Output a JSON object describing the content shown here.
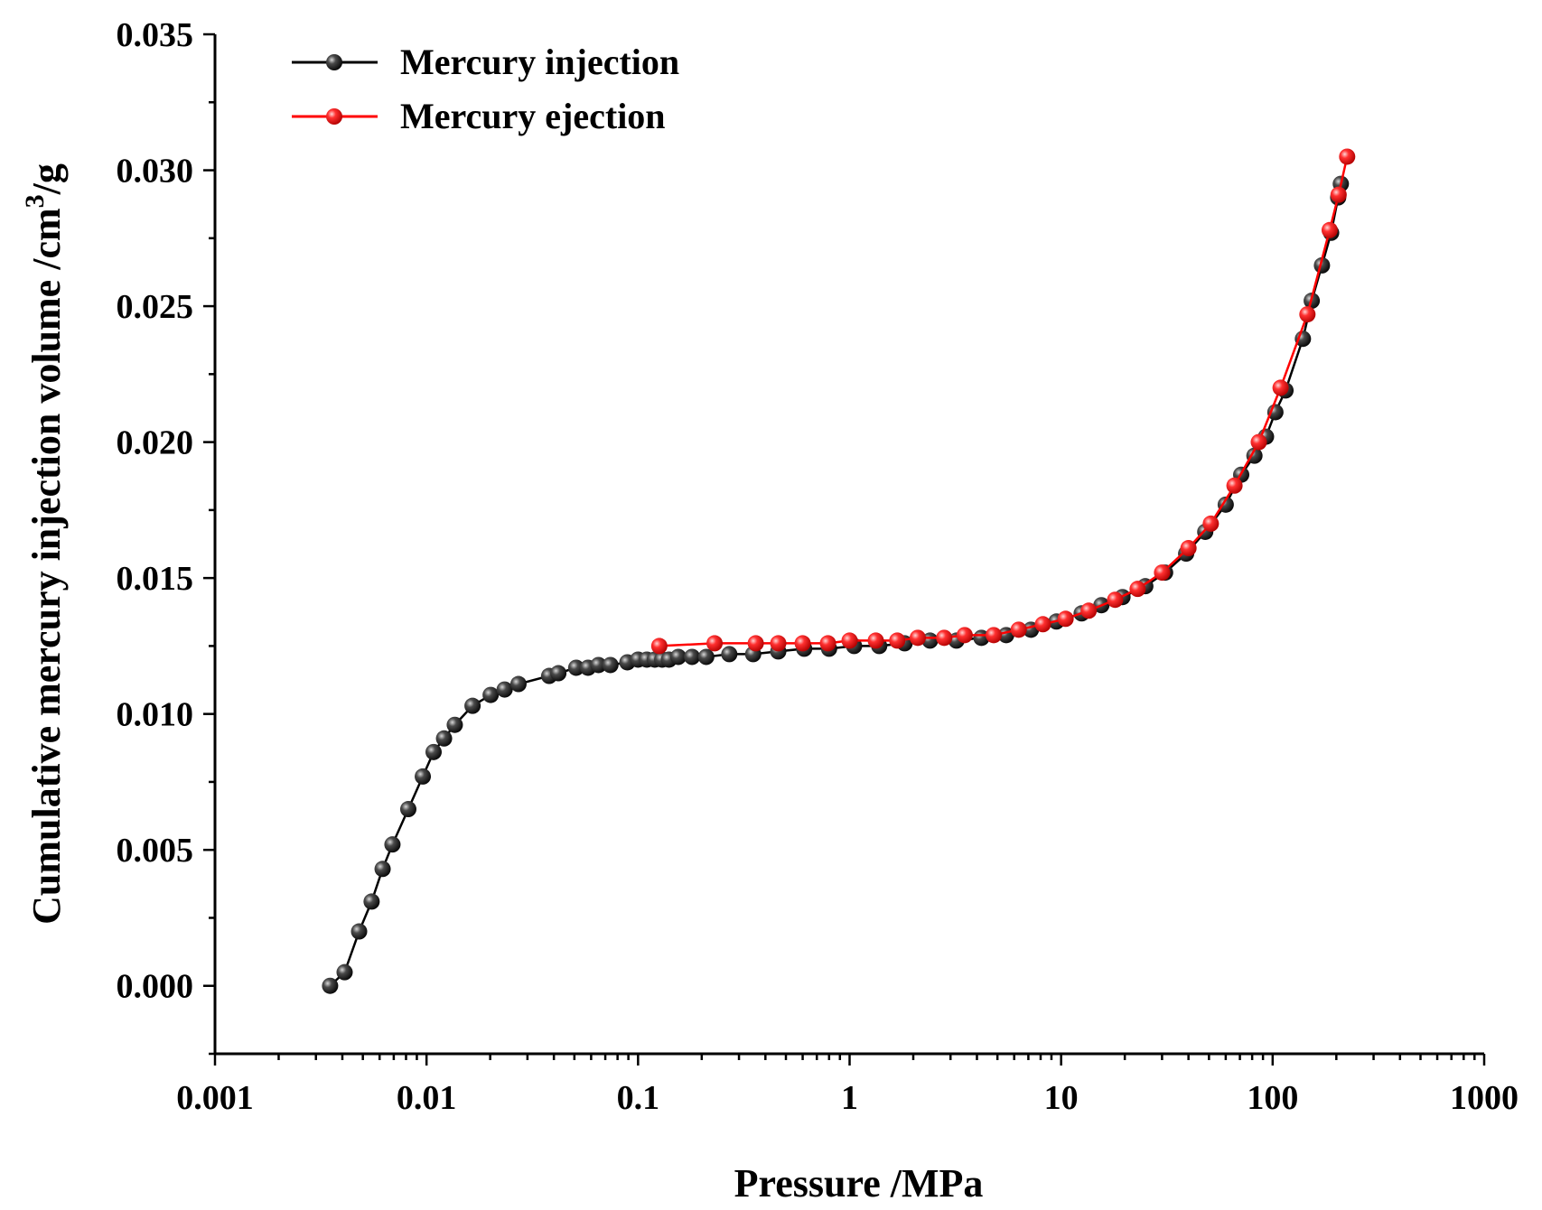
{
  "chart_data": {
    "type": "line",
    "title": "",
    "xlabel": "Pressure /MPa",
    "ylabel": "Cumulative mercury injection volume /cm",
    "ylabel_sup": "3",
    "ylabel_tail": "/g",
    "x_scale": "log",
    "xlim": [
      0.001,
      1000
    ],
    "ylim": [
      -0.0025,
      0.035
    ],
    "x_ticks": [
      0.001,
      0.01,
      0.1,
      1,
      10,
      100,
      1000
    ],
    "x_tick_labels": [
      "0.001",
      "0.01",
      "0.1",
      "1",
      "10",
      "100",
      "1000"
    ],
    "y_ticks": [
      0.0,
      0.005,
      0.01,
      0.015,
      0.02,
      0.025,
      0.03,
      0.035
    ],
    "y_tick_labels": [
      "0.000",
      "0.005",
      "0.010",
      "0.015",
      "0.020",
      "0.025",
      "0.030",
      "0.035"
    ],
    "grid": false,
    "legend": "top-left",
    "series": [
      {
        "name": "Mercury injection",
        "color": "#000000",
        "marker_color": "#1a1a1a",
        "points": [
          [
            0.0035,
            0.0
          ],
          [
            0.0041,
            0.0005
          ],
          [
            0.0048,
            0.002
          ],
          [
            0.0055,
            0.0031
          ],
          [
            0.0062,
            0.0043
          ],
          [
            0.0069,
            0.0052
          ],
          [
            0.0082,
            0.0065
          ],
          [
            0.0096,
            0.0077
          ],
          [
            0.0108,
            0.0086
          ],
          [
            0.0121,
            0.0091
          ],
          [
            0.0136,
            0.0096
          ],
          [
            0.0165,
            0.0103
          ],
          [
            0.0201,
            0.0107
          ],
          [
            0.0234,
            0.0109
          ],
          [
            0.0272,
            0.0111
          ],
          [
            0.038,
            0.0114
          ],
          [
            0.042,
            0.0115
          ],
          [
            0.051,
            0.0117
          ],
          [
            0.058,
            0.0117
          ],
          [
            0.065,
            0.0118
          ],
          [
            0.074,
            0.0118
          ],
          [
            0.089,
            0.0119
          ],
          [
            0.1,
            0.012
          ],
          [
            0.11,
            0.012
          ],
          [
            0.12,
            0.012
          ],
          [
            0.13,
            0.012
          ],
          [
            0.14,
            0.012
          ],
          [
            0.155,
            0.0121
          ],
          [
            0.18,
            0.0121
          ],
          [
            0.21,
            0.0121
          ],
          [
            0.27,
            0.0122
          ],
          [
            0.35,
            0.0122
          ],
          [
            0.46,
            0.0123
          ],
          [
            0.61,
            0.0124
          ],
          [
            0.8,
            0.0124
          ],
          [
            1.05,
            0.0125
          ],
          [
            1.38,
            0.0125
          ],
          [
            1.82,
            0.0126
          ],
          [
            2.4,
            0.0127
          ],
          [
            3.2,
            0.0127
          ],
          [
            4.2,
            0.0128
          ],
          [
            5.5,
            0.0129
          ],
          [
            7.2,
            0.0131
          ],
          [
            9.5,
            0.0134
          ],
          [
            12.5,
            0.0137
          ],
          [
            15.5,
            0.014
          ],
          [
            19.5,
            0.0143
          ],
          [
            25,
            0.0147
          ],
          [
            31,
            0.0152
          ],
          [
            39,
            0.0159
          ],
          [
            48,
            0.0167
          ],
          [
            60,
            0.0177
          ],
          [
            71,
            0.0188
          ],
          [
            82,
            0.0195
          ],
          [
            93,
            0.0202
          ],
          [
            103,
            0.0211
          ],
          [
            115,
            0.0219
          ],
          [
            139,
            0.0238
          ],
          [
            153,
            0.0252
          ],
          [
            171,
            0.0265
          ],
          [
            189,
            0.0277
          ],
          [
            204,
            0.029
          ],
          [
            210,
            0.0295
          ]
        ]
      },
      {
        "name": "Mercury ejection",
        "color": "#ff0000",
        "marker_color": "#ff1a1a",
        "points": [
          [
            0.126,
            0.0125
          ],
          [
            0.23,
            0.0126
          ],
          [
            0.36,
            0.0126
          ],
          [
            0.46,
            0.0126
          ],
          [
            0.6,
            0.0126
          ],
          [
            0.79,
            0.0126
          ],
          [
            1.0,
            0.0127
          ],
          [
            1.33,
            0.0127
          ],
          [
            1.68,
            0.0127
          ],
          [
            2.1,
            0.0128
          ],
          [
            2.8,
            0.0128
          ],
          [
            3.5,
            0.0129
          ],
          [
            4.8,
            0.0129
          ],
          [
            6.3,
            0.0131
          ],
          [
            8.2,
            0.0133
          ],
          [
            10.5,
            0.0135
          ],
          [
            13.5,
            0.0138
          ],
          [
            18,
            0.0142
          ],
          [
            23,
            0.0146
          ],
          [
            30,
            0.0152
          ],
          [
            40,
            0.0161
          ],
          [
            51,
            0.017
          ],
          [
            66,
            0.0184
          ],
          [
            86,
            0.02
          ],
          [
            109,
            0.022
          ],
          [
            146,
            0.0247
          ],
          [
            186,
            0.0278
          ],
          [
            205,
            0.0291
          ],
          [
            225,
            0.0305
          ]
        ]
      }
    ]
  }
}
